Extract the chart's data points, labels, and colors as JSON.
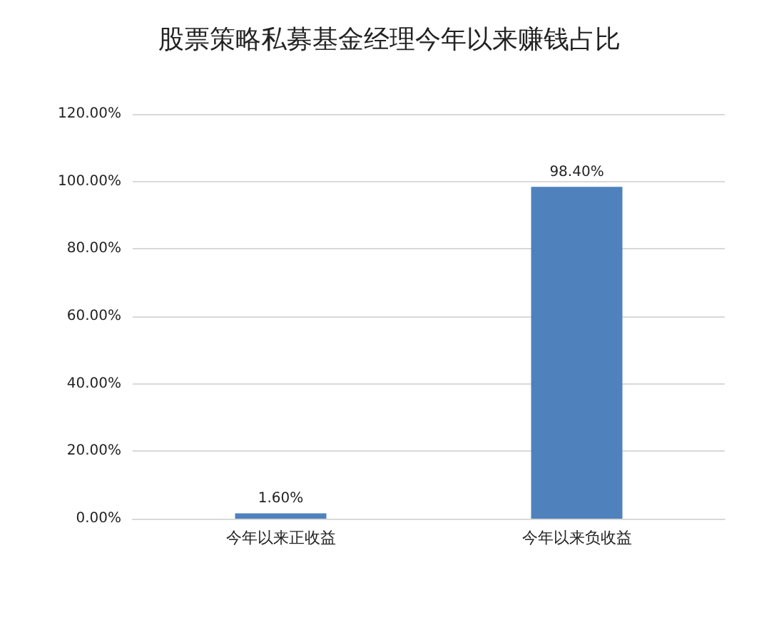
{
  "chart_data": {
    "type": "bar",
    "title": "股票策略私募基金经理今年以来赚钱占比",
    "categories": [
      "今年以来正收益",
      "今年以来负收益"
    ],
    "values": [
      1.6,
      98.4
    ],
    "color": "#4f81bd",
    "value_labels": [
      "1.60%",
      "98.40%"
    ],
    "ylim": [
      0,
      120
    ],
    "yticks": [
      {
        "value": 0,
        "label": "0.00%"
      },
      {
        "value": 20,
        "label": "20.00%"
      },
      {
        "value": 40,
        "label": "40.00%"
      },
      {
        "value": 60,
        "label": "60.00%"
      },
      {
        "value": 80,
        "label": "80.00%"
      },
      {
        "value": 100,
        "label": "100.00%"
      },
      {
        "value": 120,
        "label": "120.00%"
      }
    ],
    "grid": "y"
  }
}
